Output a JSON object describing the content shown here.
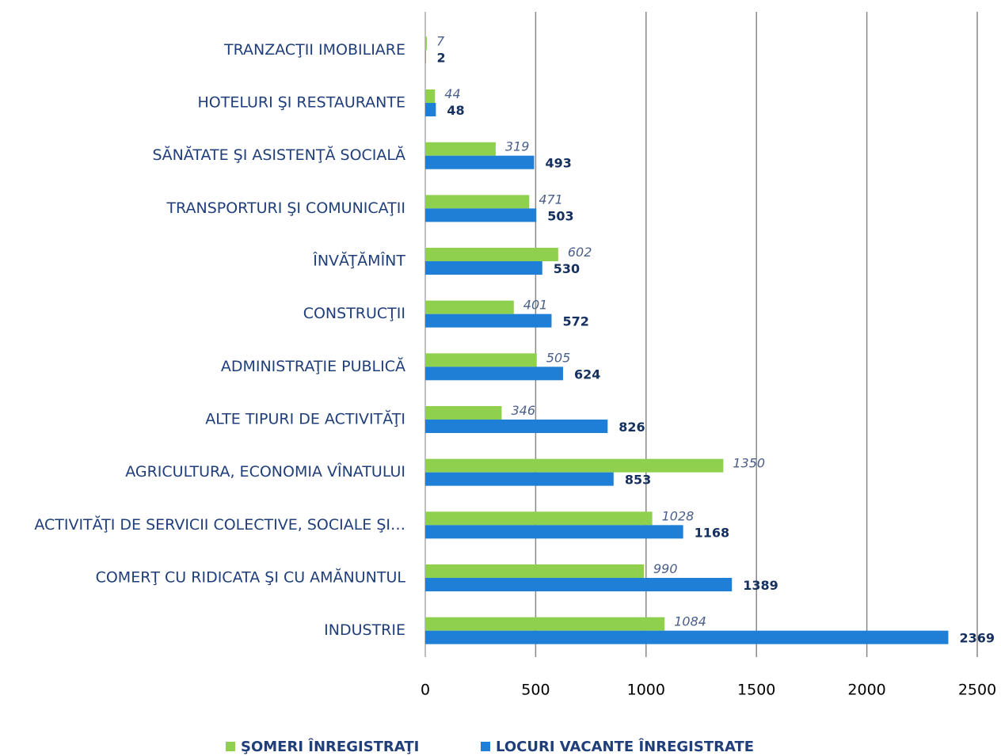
{
  "chart_data": {
    "type": "bar",
    "orientation": "horizontal",
    "categories": [
      "TRANZACŢII IMOBILIARE",
      "HOTELURI ŞI RESTAURANTE",
      "SĂNĂTATE ŞI ASISTENŢĂ SOCIALĂ",
      "TRANSPORTURI ŞI COMUNICAŢII",
      "ÎNVĂŢĂMÎNT",
      "CONSTRUCŢII",
      "ADMINISTRAŢIE PUBLICĂ",
      "ALTE TIPURI DE ACTIVITĂŢI",
      "AGRICULTURA, ECONOMIA VÎNATULUI",
      "ACTIVITĂŢI DE SERVICII COLECTIVE, SOCIALE ŞI…",
      "COMERŢ CU RIDICATA ŞI CU AMĂNUNTUL",
      "INDUSTRIE"
    ],
    "series": [
      {
        "name": "ŞOMERI ÎNREGISTRAŢI",
        "color": "#8fd14f",
        "values": [
          7,
          44,
          319,
          471,
          602,
          401,
          505,
          346,
          1350,
          1028,
          990,
          1084
        ]
      },
      {
        "name": "LOCURI VACANTE ÎNREGISTRATE",
        "color": "#1f7fd6",
        "values": [
          2,
          48,
          493,
          503,
          530,
          572,
          624,
          826,
          853,
          1168,
          1389,
          2369
        ]
      }
    ],
    "xlim": [
      0,
      2500
    ],
    "xticks": [
      0,
      500,
      1000,
      1500,
      2000,
      2500
    ],
    "grid": true,
    "legend": "bottom"
  }
}
